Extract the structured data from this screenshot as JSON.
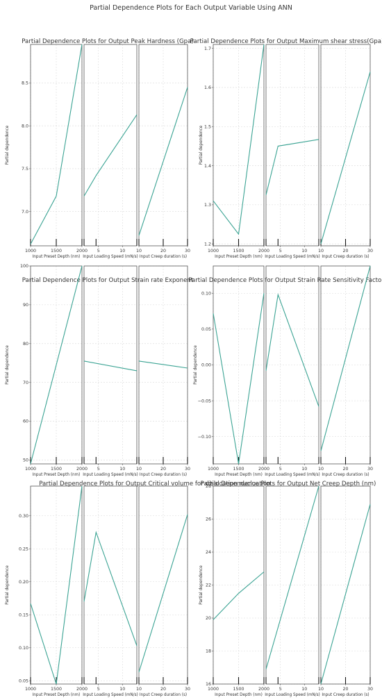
{
  "figure": {
    "suptitle": "Partial Dependence Plots for Each Output Variable Using ANN"
  },
  "chart_data": [
    {
      "type": "line",
      "title": "Partial Dependence Plots for Output Peak Hardness (Gpa)",
      "ylabel": "Partial dependence",
      "ylim": [
        6.6,
        8.95
      ],
      "yticks": [
        7.0,
        7.5,
        8.0,
        8.5
      ],
      "ytick_labels": [
        "7.0",
        "7.5",
        "8.0",
        "8.5"
      ],
      "panels": [
        {
          "xlabel": "Input Preset Depth (nm)",
          "xlim": [
            1000,
            2000
          ],
          "xticks": [
            1000,
            1500,
            2000
          ],
          "x": [
            1000,
            1500,
            2000
          ],
          "y": [
            6.62,
            7.18,
            8.95
          ],
          "rug": [
            1000,
            1500,
            2000
          ]
        },
        {
          "xlabel": "Input Loading Speed (mN/s)",
          "xlim": [
            2,
            13
          ],
          "xticks": [
            5,
            10
          ],
          "x": [
            2,
            4.5,
            13
          ],
          "y": [
            7.18,
            7.42,
            8.13
          ],
          "rug": [
            2,
            4.5,
            13
          ]
        },
        {
          "xlabel": "Input Creep duration (s)",
          "xlim": [
            10,
            30
          ],
          "xticks": [
            10,
            20,
            30
          ],
          "x": [
            10,
            30
          ],
          "y": [
            6.72,
            8.45
          ],
          "rug": [
            10,
            20,
            30
          ]
        }
      ]
    },
    {
      "type": "line",
      "title": "Partial Dependence Plots for Output Maximum shear stress(Gpa)",
      "ylabel": "Partial dependence",
      "ylim": [
        1.195,
        1.71
      ],
      "yticks": [
        1.2,
        1.3,
        1.4,
        1.5,
        1.6,
        1.7
      ],
      "ytick_labels": [
        "1.2",
        "1.3",
        "1.4",
        "1.5",
        "1.6",
        "1.7"
      ],
      "panels": [
        {
          "xlabel": "Input Preset Depth (nm)",
          "xlim": [
            1000,
            2000
          ],
          "xticks": [
            1000,
            1500,
            2000
          ],
          "x": [
            1000,
            1500,
            2000
          ],
          "y": [
            1.31,
            1.225,
            1.71
          ],
          "rug": [
            1000,
            1500,
            2000
          ]
        },
        {
          "xlabel": "Input Loading Speed (mN/s)",
          "xlim": [
            2,
            13
          ],
          "xticks": [
            5,
            10
          ],
          "x": [
            2,
            4.5,
            13
          ],
          "y": [
            1.325,
            1.45,
            1.467
          ],
          "rug": [
            2,
            4.5,
            13
          ]
        },
        {
          "xlabel": "Input Creep duration (s)",
          "xlim": [
            10,
            30
          ],
          "xticks": [
            10,
            20,
            30
          ],
          "x": [
            10,
            30
          ],
          "y": [
            1.2,
            1.64
          ],
          "rug": [
            10,
            20,
            30
          ]
        }
      ]
    },
    {
      "type": "line",
      "title": "Partial Dependence Plots for Output Strain rate Exponent",
      "ylabel": "Partial dependence",
      "ylim": [
        49,
        100
      ],
      "yticks": [
        50,
        60,
        70,
        80,
        90,
        100
      ],
      "ytick_labels": [
        "50",
        "60",
        "70",
        "80",
        "90",
        "100"
      ],
      "panels": [
        {
          "xlabel": "Input Preset Depth (nm)",
          "xlim": [
            1000,
            2000
          ],
          "xticks": [
            1000,
            1500,
            2000
          ],
          "x": [
            1000,
            2000
          ],
          "y": [
            49,
            100
          ],
          "rug": [
            1000,
            1500,
            2000
          ]
        },
        {
          "xlabel": "Input Loading Speed (mN/s)",
          "xlim": [
            2,
            13
          ],
          "xticks": [
            5,
            10
          ],
          "x": [
            2,
            13
          ],
          "y": [
            75.5,
            73.0
          ],
          "rug": [
            2,
            4.5,
            13
          ]
        },
        {
          "xlabel": "Input Creep duration (s)",
          "xlim": [
            10,
            30
          ],
          "xticks": [
            10,
            20,
            30
          ],
          "x": [
            10,
            30
          ],
          "y": [
            75.5,
            73.7
          ],
          "rug": [
            10,
            20,
            30
          ]
        }
      ]
    },
    {
      "type": "line",
      "title": "Partial Dependence Plots for Output Strain Rate Sensitivity Factor",
      "ylabel": "Partial dependence",
      "ylim": [
        -0.138,
        0.138
      ],
      "yticks": [
        -0.1,
        -0.05,
        0.0,
        0.05,
        0.1
      ],
      "ytick_labels": [
        "−0.10",
        "−0.05",
        "0.00",
        "0.05",
        "0.10"
      ],
      "panels": [
        {
          "xlabel": "Input Preset Depth (nm)",
          "xlim": [
            1000,
            2000
          ],
          "xticks": [
            1000,
            1500,
            2000
          ],
          "x": [
            1000,
            1500,
            2000
          ],
          "y": [
            0.072,
            -0.138,
            0.1
          ],
          "rug": [
            1000,
            1500,
            2000
          ]
        },
        {
          "xlabel": "Input Loading Speed (mN/s)",
          "xlim": [
            2,
            13
          ],
          "xticks": [
            5,
            10
          ],
          "x": [
            2,
            4.5,
            13
          ],
          "y": [
            -0.008,
            0.098,
            -0.058
          ],
          "rug": [
            2,
            4.5,
            13
          ]
        },
        {
          "xlabel": "Input Creep duration (s)",
          "xlim": [
            10,
            30
          ],
          "xticks": [
            10,
            20,
            30
          ],
          "x": [
            10,
            30
          ],
          "y": [
            -0.12,
            0.138
          ],
          "rug": [
            10,
            20,
            30
          ]
        }
      ]
    },
    {
      "type": "line",
      "title": "Partial Dependence Plots for Output Critical volume for dislocation nucluation",
      "ylabel": "Partial dependence",
      "ylim": [
        0.045,
        0.345
      ],
      "yticks": [
        0.05,
        0.1,
        0.15,
        0.2,
        0.25,
        0.3
      ],
      "ytick_labels": [
        "0.05",
        "0.10",
        "0.15",
        "0.20",
        "0.25",
        "0.30"
      ],
      "panels": [
        {
          "xlabel": "Input Preset Depth (nm)",
          "xlim": [
            1000,
            2000
          ],
          "xticks": [
            1000,
            1500,
            2000
          ],
          "x": [
            1000,
            1500,
            2000
          ],
          "y": [
            0.167,
            0.045,
            0.345
          ],
          "rug": [
            1000,
            1500,
            2000
          ]
        },
        {
          "xlabel": "Input Loading Speed (mN/s)",
          "xlim": [
            2,
            13
          ],
          "xticks": [
            5,
            10
          ],
          "x": [
            2,
            4.5,
            13
          ],
          "y": [
            0.17,
            0.275,
            0.103
          ],
          "rug": [
            2,
            4.5,
            13
          ]
        },
        {
          "xlabel": "Input Creep duration (s)",
          "xlim": [
            10,
            30
          ],
          "xticks": [
            10,
            20,
            30
          ],
          "x": [
            10,
            30
          ],
          "y": [
            0.063,
            0.302
          ],
          "rug": [
            10,
            20,
            30
          ]
        }
      ]
    },
    {
      "type": "line",
      "title": "Partial Dependence Plots for Output Net Creep Depth (nm)",
      "ylabel": "Partial dependence",
      "ylim": [
        16.0,
        28.0
      ],
      "yticks": [
        16,
        18,
        20,
        22,
        24,
        26,
        28
      ],
      "ytick_labels": [
        "16",
        "18",
        "20",
        "22",
        "24",
        "26",
        "28"
      ],
      "panels": [
        {
          "xlabel": "Input Preset Depth (nm)",
          "xlim": [
            1000,
            2000
          ],
          "xticks": [
            1000,
            1500,
            2000
          ],
          "x": [
            1000,
            1500,
            2000
          ],
          "y": [
            19.9,
            21.5,
            22.8
          ],
          "rug": [
            1000,
            1500,
            2000
          ]
        },
        {
          "xlabel": "Input Loading Speed (mN/s)",
          "xlim": [
            2,
            13
          ],
          "xticks": [
            5,
            10
          ],
          "x": [
            2,
            13
          ],
          "y": [
            16.9,
            28.0
          ],
          "rug": [
            2,
            4.5,
            13
          ]
        },
        {
          "xlabel": "Input Creep duration (s)",
          "xlim": [
            10,
            30
          ],
          "xticks": [
            10,
            20,
            30
          ],
          "x": [
            10,
            30
          ],
          "y": [
            16.0,
            26.9
          ],
          "rug": [
            10,
            20,
            30
          ]
        }
      ]
    }
  ]
}
